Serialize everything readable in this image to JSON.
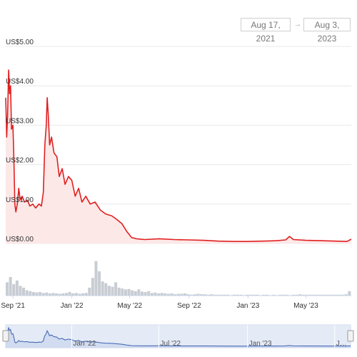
{
  "date_range": {
    "from": "Aug 17, 2021",
    "arrow": "→",
    "to": "Aug 3, 2023"
  },
  "colors": {
    "price_line": "#e02020",
    "price_fill": "#fde8e8",
    "volume_bar": "#c8cdd3",
    "navigator_line": "#3a5fb0",
    "navigator_fill": "#dfe6f4",
    "grid": "#e9e9e9",
    "axis_text": "#333333"
  },
  "chart_data": {
    "type": "line",
    "title": "",
    "xlabel": "",
    "ylabel": "",
    "ylim": [
      0,
      5
    ],
    "y_ticks": [
      "US$0.00",
      "US$1.00",
      "US$2.00",
      "US$3.00",
      "US$4.00",
      "US$5.00"
    ],
    "x_ticks": [
      {
        "label": "Sep '21",
        "date": "2021-09-01"
      },
      {
        "label": "Jan '22",
        "date": "2022-01-01"
      },
      {
        "label": "May '22",
        "date": "2022-05-01"
      },
      {
        "label": "Sep '22",
        "date": "2022-09-01"
      },
      {
        "label": "Jan '23",
        "date": "2023-01-01"
      },
      {
        "label": "May '23",
        "date": "2023-05-01"
      }
    ],
    "navigator_ticks": [
      {
        "label": "Jan '22",
        "date": "2022-01-01"
      },
      {
        "label": "Jul '22",
        "date": "2022-07-01"
      },
      {
        "label": "Jan '23",
        "date": "2023-01-01"
      },
      {
        "label": "J…",
        "date": "2023-07-01"
      }
    ],
    "grid": true,
    "series": [
      {
        "points": [
          [
            "2021-08-17",
            3.7
          ],
          [
            "2021-08-19",
            2.7
          ],
          [
            "2021-08-21",
            3.3
          ],
          [
            "2021-08-23",
            4.4
          ],
          [
            "2021-08-25",
            3.8
          ],
          [
            "2021-08-27",
            4.0
          ],
          [
            "2021-08-29",
            2.9
          ],
          [
            "2021-09-01",
            3.0
          ],
          [
            "2021-09-03",
            2.1
          ],
          [
            "2021-09-05",
            1.0
          ],
          [
            "2021-09-07",
            0.8
          ],
          [
            "2021-09-10",
            1.0
          ],
          [
            "2021-09-13",
            1.4
          ],
          [
            "2021-09-16",
            1.1
          ],
          [
            "2021-09-20",
            1.2
          ],
          [
            "2021-09-25",
            1.05
          ],
          [
            "2021-10-01",
            1.1
          ],
          [
            "2021-10-06",
            0.95
          ],
          [
            "2021-10-12",
            1.0
          ],
          [
            "2021-10-18",
            0.9
          ],
          [
            "2021-10-25",
            1.0
          ],
          [
            "2021-10-30",
            0.95
          ],
          [
            "2021-11-03",
            1.3
          ],
          [
            "2021-11-06",
            2.5
          ],
          [
            "2021-11-09",
            3.0
          ],
          [
            "2021-11-11",
            3.7
          ],
          [
            "2021-11-13",
            3.3
          ],
          [
            "2021-11-16",
            2.5
          ],
          [
            "2021-11-20",
            2.7
          ],
          [
            "2021-11-25",
            2.3
          ],
          [
            "2021-12-01",
            2.2
          ],
          [
            "2021-12-06",
            1.7
          ],
          [
            "2021-12-12",
            1.9
          ],
          [
            "2021-12-18",
            1.5
          ],
          [
            "2021-12-25",
            1.7
          ],
          [
            "2022-01-01",
            1.6
          ],
          [
            "2022-01-08",
            1.2
          ],
          [
            "2022-01-15",
            1.4
          ],
          [
            "2022-01-22",
            1.05
          ],
          [
            "2022-01-30",
            1.2
          ],
          [
            "2022-02-08",
            1.0
          ],
          [
            "2022-02-18",
            1.05
          ],
          [
            "2022-03-01",
            0.85
          ],
          [
            "2022-03-12",
            0.75
          ],
          [
            "2022-03-25",
            0.7
          ],
          [
            "2022-04-05",
            0.6
          ],
          [
            "2022-04-15",
            0.5
          ],
          [
            "2022-04-25",
            0.3
          ],
          [
            "2022-05-05",
            0.15
          ],
          [
            "2022-05-15",
            0.12
          ],
          [
            "2022-06-01",
            0.1
          ],
          [
            "2022-07-01",
            0.12
          ],
          [
            "2022-08-01",
            0.1
          ],
          [
            "2022-09-01",
            0.09
          ],
          [
            "2022-10-01",
            0.08
          ],
          [
            "2022-11-01",
            0.06
          ],
          [
            "2022-12-01",
            0.05
          ],
          [
            "2023-01-01",
            0.05
          ],
          [
            "2023-02-01",
            0.06
          ],
          [
            "2023-03-01",
            0.07
          ],
          [
            "2023-03-20",
            0.09
          ],
          [
            "2023-03-28",
            0.18
          ],
          [
            "2023-04-05",
            0.1
          ],
          [
            "2023-05-01",
            0.08
          ],
          [
            "2023-06-01",
            0.07
          ],
          [
            "2023-07-01",
            0.06
          ],
          [
            "2023-07-25",
            0.05
          ],
          [
            "2023-08-03",
            0.11
          ]
        ]
      }
    ],
    "volume": [
      0.3,
      0.42,
      0.26,
      0.34,
      0.22,
      0.18,
      0.12,
      0.1,
      0.08,
      0.07,
      0.08,
      0.06,
      0.07,
      0.05,
      0.06,
      0.05,
      0.04,
      0.05,
      0.06,
      0.08,
      0.05,
      0.06,
      0.04,
      0.05,
      0.06,
      0.18,
      0.4,
      0.78,
      0.55,
      0.32,
      0.28,
      0.22,
      0.2,
      0.3,
      0.18,
      0.16,
      0.14,
      0.15,
      0.12,
      0.1,
      0.14,
      0.09,
      0.08,
      0.1,
      0.06,
      0.07,
      0.05,
      0.06,
      0.05,
      0.04,
      0.05,
      0.03,
      0.04,
      0.04,
      0.05,
      0.03,
      0.02,
      0.03,
      0.04,
      0.03,
      0.03,
      0.02,
      0.03,
      0.02,
      0.02,
      0.02,
      0.02,
      0.02,
      0.01,
      0.02,
      0.02,
      0.02,
      0.01,
      0.02,
      0.02,
      0.02,
      0.02,
      0.01,
      0.02,
      0.02,
      0.01,
      0.02,
      0.01,
      0.02,
      0.02,
      0.02,
      0.01,
      0.02,
      0.02,
      0.03,
      0.02,
      0.02,
      0.02,
      0.02,
      0.02,
      0.02,
      0.02,
      0.02,
      0.02,
      0.02,
      0.02,
      0.02,
      0.02,
      0.03,
      0.1
    ]
  }
}
